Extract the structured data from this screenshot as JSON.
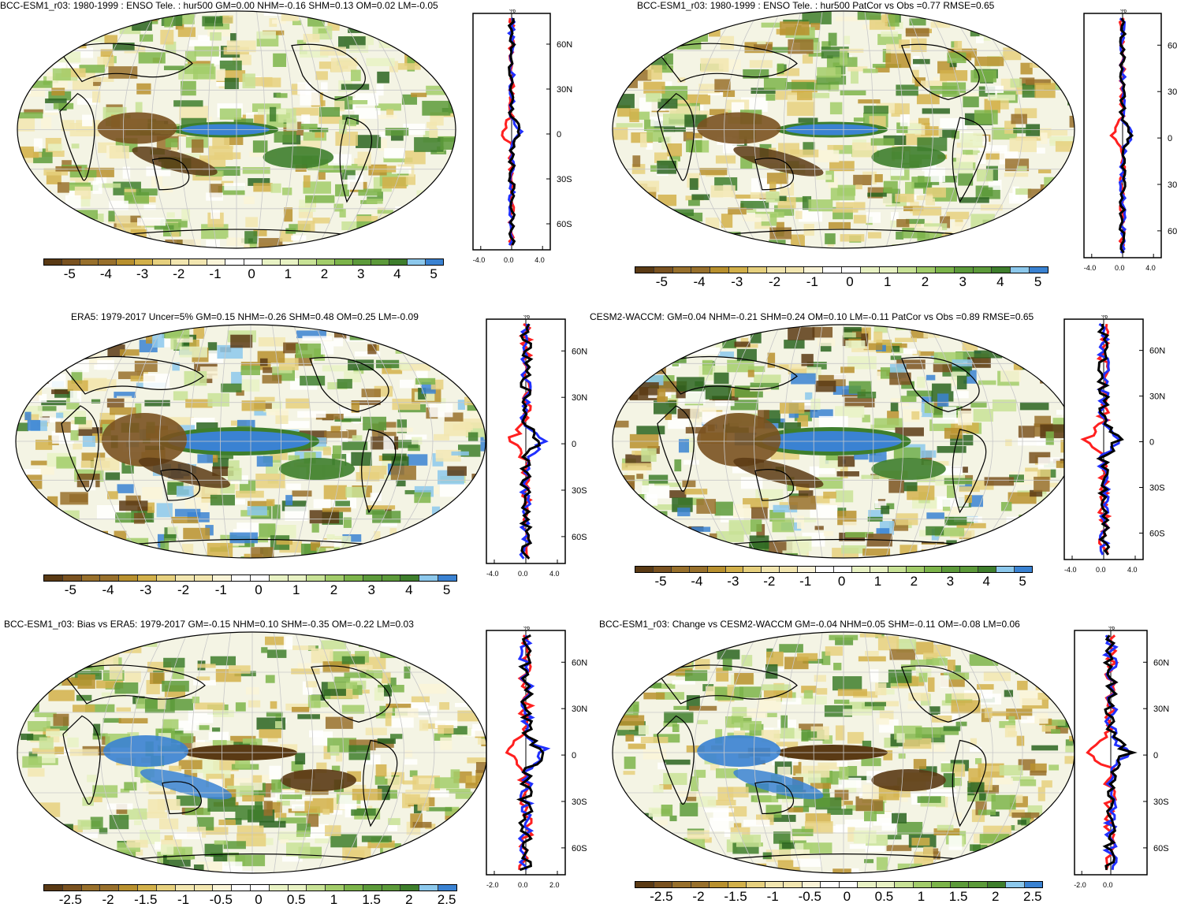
{
  "panels": [
    {
      "title": "BCC-ESM1_r03: 1980-1999 : ENSO Tele. : hur500 GM=0.00 NHM=-0.16 SHM=0.13 OM=0.02 LM=-0.05",
      "cbar_labels": [
        "-5",
        "-4",
        "-3",
        "-2",
        "-1",
        "0",
        "1",
        "2",
        "3",
        "4",
        "5"
      ],
      "prof_ticks": [
        "-4.0",
        "0.0",
        "4.0"
      ],
      "unit": "%",
      "lat_ticks": [
        "60N",
        "30N",
        "0",
        "30S",
        "60S"
      ]
    },
    {
      "title": "BCC-ESM1_r03: 1980-1999 : ENSO Tele. : hur500 PatCor vs Obs =0.77 RMSE=0.65",
      "cbar_labels": [
        "-5",
        "-4",
        "-3",
        "-2",
        "-1",
        "0",
        "1",
        "2",
        "3",
        "4",
        "5"
      ],
      "prof_ticks": [
        "-4.0",
        "0.0",
        "4.0"
      ],
      "unit": "%",
      "lat_ticks": [
        "60",
        "30",
        "0",
        "30",
        "60"
      ]
    },
    {
      "title": "ERA5: 1979-2017 Uncer=5% GM=0.15 NHM=-0.26 SHM=0.48 OM=0.25 LM=-0.09",
      "cbar_labels": [
        "-5",
        "-4",
        "-3",
        "-2",
        "-1",
        "0",
        "1",
        "2",
        "3",
        "4",
        "5"
      ],
      "prof_ticks": [
        "-4.0",
        "0.0",
        "4.0"
      ],
      "unit": "%",
      "lat_ticks": [
        "60N",
        "30N",
        "0",
        "30S",
        "60S"
      ]
    },
    {
      "title": "CESM2-WACCM: GM=0.04 NHM=-0.21 SHM=0.24 OM=0.10 LM=-0.11 PatCor vs Obs =0.89 RMSE=0.65",
      "cbar_labels": [
        "-5",
        "-4",
        "-3",
        "-2",
        "-1",
        "0",
        "1",
        "2",
        "3",
        "4",
        "5"
      ],
      "prof_ticks": [
        "-4.0",
        "0.0",
        "4.0"
      ],
      "unit": "%",
      "lat_ticks": [
        "60N",
        "30N",
        "0",
        "30S",
        "60S"
      ]
    },
    {
      "title": "BCC-ESM1_r03: Bias vs ERA5: 1979-2017 GM=-0.15 NHM=0.10 SHM=-0.35 OM=-0.22 LM=0.03",
      "cbar_labels": [
        "-2.5",
        "-2",
        "-1.5",
        "-1",
        "-0.5",
        "0",
        "0.5",
        "1",
        "1.5",
        "2",
        "2.5"
      ],
      "prof_ticks": [
        "-2.0",
        "0.0",
        "2.0"
      ],
      "unit": "%",
      "lat_ticks": [
        "60N",
        "30N",
        "0",
        "30S",
        "60S"
      ]
    },
    {
      "title": "BCC-ESM1_r03: Change vs CESM2-WACCM GM=-0.04 NHM=0.05 SHM=-0.11 OM=-0.08 LM=0.06",
      "cbar_labels": [
        "-2.5",
        "-2",
        "-1.5",
        "-1",
        "-0.5",
        "0",
        "0.5",
        "1",
        "1.5",
        "2",
        "2.5"
      ],
      "prof_ticks": [
        "-2.0",
        "0.0"
      ],
      "unit": "%",
      "lat_ticks": [
        "60N",
        "30N",
        "0",
        "30S",
        "60S"
      ]
    }
  ],
  "colors": {
    "palette": [
      "#5a3a14",
      "#7a5220",
      "#98702c",
      "#b8902e",
      "#d2b04a",
      "#e6d07e",
      "#f2e6b0",
      "#faf4d8",
      "#ffffff",
      "#ffffff",
      "#e8f2c4",
      "#c8e296",
      "#a2cc6a",
      "#7cb44a",
      "#5c9a3a",
      "#3e7e2c",
      "#2a6420",
      "#8cc8ec",
      "#3a82d2"
    ],
    "profile_series": [
      "#ff2020",
      "#2030ff",
      "#000000"
    ]
  },
  "chart_data": [
    {
      "type": "heatmap",
      "title": "BCC-ESM1_r03: 1980-1999 : ENSO Tele. : hur500 GM=0.00 NHM=-0.16 SHM=0.13 OM=0.02 LM=-0.05",
      "colorbar": [
        -5,
        -4,
        -3,
        -2,
        -1,
        0,
        1,
        2,
        3,
        4,
        5
      ],
      "zonal_profile_xlim": [
        -4,
        4
      ]
    },
    {
      "type": "heatmap",
      "title": "BCC-ESM1_r03: 1980-1999 : ENSO Tele. : hur500 PatCor vs Obs =0.77 RMSE=0.65",
      "colorbar": [
        -5,
        -4,
        -3,
        -2,
        -1,
        0,
        1,
        2,
        3,
        4,
        5
      ],
      "zonal_profile_xlim": [
        -4,
        4
      ]
    },
    {
      "type": "heatmap",
      "title": "ERA5: 1979-2017 Uncer=5% GM=0.15 NHM=-0.26 SHM=0.48 OM=0.25 LM=-0.09",
      "colorbar": [
        -5,
        -4,
        -3,
        -2,
        -1,
        0,
        1,
        2,
        3,
        4,
        5
      ],
      "zonal_profile_xlim": [
        -4,
        4
      ]
    },
    {
      "type": "heatmap",
      "title": "CESM2-WACCM: GM=0.04 NHM=-0.21 SHM=0.24 OM=0.10 LM=-0.11 PatCor vs Obs =0.89 RMSE=0.65",
      "colorbar": [
        -5,
        -4,
        -3,
        -2,
        -1,
        0,
        1,
        2,
        3,
        4,
        5
      ],
      "zonal_profile_xlim": [
        -4,
        4
      ]
    },
    {
      "type": "heatmap",
      "title": "BCC-ESM1_r03: Bias vs ERA5: 1979-2017 GM=-0.15 NHM=0.10 SHM=-0.35 OM=-0.22 LM=0.03",
      "colorbar": [
        -2.5,
        -2,
        -1.5,
        -1,
        -0.5,
        0,
        0.5,
        1,
        1.5,
        2,
        2.5
      ],
      "zonal_profile_xlim": [
        -2,
        2
      ]
    },
    {
      "type": "heatmap",
      "title": "BCC-ESM1_r03: Change vs CESM2-WACCM GM=-0.04 NHM=0.05 SHM=-0.11 OM=-0.08 LM=0.06",
      "colorbar": [
        -2.5,
        -2,
        -1.5,
        -1,
        -0.5,
        0,
        0.5,
        1,
        1.5,
        2,
        2.5
      ],
      "zonal_profile_xlim": [
        -2,
        2
      ]
    }
  ]
}
